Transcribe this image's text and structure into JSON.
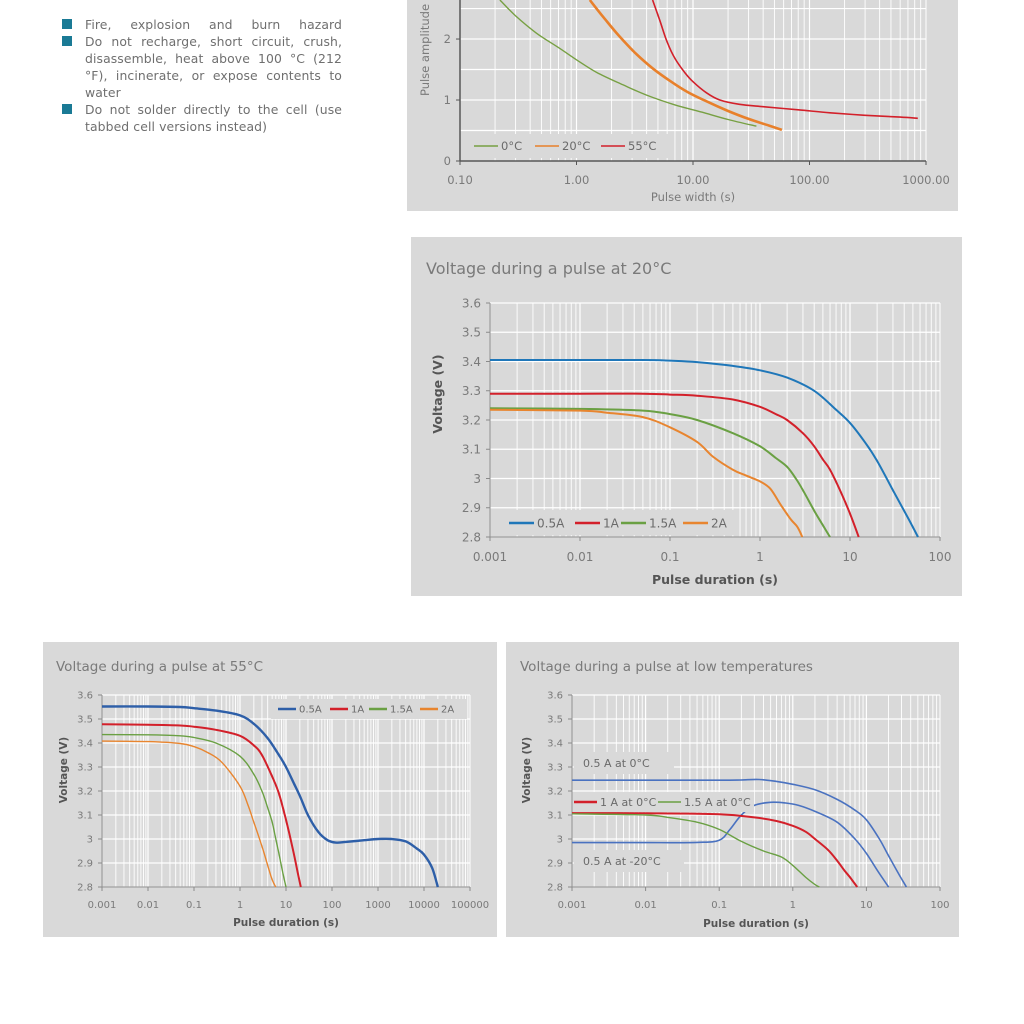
{
  "warnings": {
    "items": [
      "Fire, explosion and burn hazard",
      "Do not recharge, short circuit, crush, disassemble, heat above 100 °C (212 °F), incinerate, or expose contents to water",
      "Do not solder directly to the cell (use tabbed cell versions instead)"
    ],
    "bullet_color": "#1a7a95"
  },
  "chart_data": [
    {
      "id": "pulse-amplitude",
      "type": "line",
      "title": "",
      "xlabel": "Pulse width (s)",
      "ylabel": "Pulse amplitude",
      "xscale": "log",
      "xlim": [
        0.1,
        1000
      ],
      "ylim": [
        0,
        2.64
      ],
      "xticks": [
        "0.10",
        "1.00",
        "10.00",
        "100.00",
        "1000.00"
      ],
      "yticks": [
        "0",
        "1",
        "2"
      ],
      "legend_position": "bottom-left",
      "series": [
        {
          "name": "0°C",
          "color": "#77a043",
          "x": [
            0.22,
            0.3,
            0.45,
            0.7,
            1.0,
            1.5,
            2.5,
            4,
            7,
            12,
            20,
            35
          ],
          "y": [
            2.64,
            2.38,
            2.1,
            1.86,
            1.66,
            1.45,
            1.25,
            1.08,
            0.92,
            0.8,
            0.68,
            0.57
          ]
        },
        {
          "name": "20°C",
          "color": "#e8802b",
          "x": [
            1.3,
            1.7,
            2.3,
            3.2,
            4.5,
            6.5,
            9,
            13,
            20,
            30,
            45,
            58
          ],
          "y": [
            2.64,
            2.36,
            2.06,
            1.77,
            1.52,
            1.3,
            1.13,
            0.98,
            0.82,
            0.69,
            0.58,
            0.51
          ]
        },
        {
          "name": "55°C",
          "color": "#d3202a",
          "x": [
            4.5,
            5.2,
            6,
            7,
            8.5,
            10,
            13,
            17,
            25,
            40,
            80,
            150,
            300,
            600,
            850
          ],
          "y": [
            2.64,
            2.3,
            1.95,
            1.68,
            1.45,
            1.3,
            1.12,
            1.0,
            0.93,
            0.89,
            0.84,
            0.79,
            0.75,
            0.72,
            0.7
          ]
        }
      ]
    },
    {
      "id": "voltage-20c",
      "type": "line",
      "title": "Voltage during a pulse at 20°C",
      "xlabel": "Pulse duration (s)",
      "ylabel": "Voltage (V)",
      "xscale": "log",
      "xlim": [
        0.001,
        100
      ],
      "ylim": [
        2.8,
        3.6
      ],
      "xticks": [
        "0.001",
        "0.01",
        "0.1",
        "1",
        "10",
        "100"
      ],
      "yticks": [
        "2.8",
        "2.9",
        "3",
        "3.1",
        "3.2",
        "3.3",
        "3.4",
        "3.5",
        "3.6"
      ],
      "legend_position": "bottom-left",
      "series": [
        {
          "name": "0.5A",
          "color": "#1f77b9",
          "x": [
            0.001,
            0.01,
            0.05,
            0.1,
            0.2,
            0.5,
            1,
            2,
            4,
            7,
            10,
            15,
            20,
            30,
            45,
            57
          ],
          "y": [
            3.405,
            3.405,
            3.405,
            3.403,
            3.398,
            3.385,
            3.37,
            3.345,
            3.3,
            3.235,
            3.19,
            3.12,
            3.06,
            2.96,
            2.86,
            2.8
          ]
        },
        {
          "name": "1A",
          "color": "#d3202a",
          "x": [
            0.001,
            0.01,
            0.05,
            0.1,
            0.2,
            0.5,
            1,
            1.5,
            2,
            3,
            4,
            5,
            6,
            8,
            10,
            12.5
          ],
          "y": [
            3.29,
            3.29,
            3.29,
            3.287,
            3.283,
            3.27,
            3.245,
            3.22,
            3.2,
            3.155,
            3.11,
            3.065,
            3.03,
            2.95,
            2.88,
            2.8
          ]
        },
        {
          "name": "1.5A",
          "color": "#6aa043",
          "x": [
            0.001,
            0.01,
            0.05,
            0.1,
            0.2,
            0.5,
            1,
            1.5,
            2,
            2.5,
            3,
            4,
            5,
            6
          ],
          "y": [
            3.24,
            3.238,
            3.232,
            3.22,
            3.2,
            3.155,
            3.11,
            3.07,
            3.04,
            3.0,
            2.96,
            2.89,
            2.84,
            2.8
          ]
        },
        {
          "name": "2A",
          "color": "#e8852f",
          "x": [
            0.001,
            0.01,
            0.02,
            0.05,
            0.1,
            0.2,
            0.3,
            0.5,
            0.7,
            1,
            1.3,
            1.7,
            2.2,
            2.6,
            2.95
          ],
          "y": [
            3.235,
            3.232,
            3.225,
            3.21,
            3.175,
            3.125,
            3.075,
            3.03,
            3.01,
            2.99,
            2.965,
            2.91,
            2.86,
            2.835,
            2.8
          ]
        }
      ]
    },
    {
      "id": "voltage-55c",
      "type": "line",
      "title": "Voltage during a pulse at 55°C",
      "xlabel": "Pulse duration (s)",
      "ylabel": "Voltage (V)",
      "xscale": "log",
      "xlim": [
        0.001,
        100000
      ],
      "ylim": [
        2.8,
        3.6
      ],
      "xticks": [
        "0.001",
        "0.01",
        "0.1",
        "1",
        "10",
        "100",
        "1000",
        "10000",
        "100000"
      ],
      "yticks": [
        "2.8",
        "2.9",
        "3",
        "3.1",
        "3.2",
        "3.3",
        "3.4",
        "3.5",
        "3.6"
      ],
      "legend_position": "top-right",
      "series": [
        {
          "name": "0.5A",
          "color": "#2e5fa8",
          "x": [
            0.001,
            0.01,
            0.05,
            0.1,
            0.3,
            1,
            2,
            4,
            7,
            10,
            15,
            20,
            30,
            50,
            80,
            120,
            200,
            500,
            1000,
            2000,
            4000,
            7000,
            10000,
            15000,
            20000
          ],
          "y": [
            3.552,
            3.552,
            3.55,
            3.545,
            3.535,
            3.515,
            3.48,
            3.42,
            3.35,
            3.3,
            3.23,
            3.18,
            3.1,
            3.03,
            2.995,
            2.985,
            2.988,
            2.995,
            3.0,
            3.0,
            2.99,
            2.96,
            2.935,
            2.88,
            2.8
          ]
        },
        {
          "name": "1A",
          "color": "#d3202a",
          "x": [
            0.001,
            0.01,
            0.05,
            0.1,
            0.3,
            1,
            2,
            3,
            5,
            7,
            10,
            14,
            18,
            21
          ],
          "y": [
            3.478,
            3.476,
            3.473,
            3.468,
            3.455,
            3.43,
            3.39,
            3.35,
            3.26,
            3.19,
            3.08,
            2.96,
            2.86,
            2.8
          ]
        },
        {
          "name": "1.5A",
          "color": "#6aa043",
          "x": [
            0.001,
            0.01,
            0.05,
            0.1,
            0.3,
            1,
            2,
            3,
            4,
            5,
            6,
            7,
            8.5,
            10
          ],
          "y": [
            3.435,
            3.434,
            3.43,
            3.423,
            3.4,
            3.345,
            3.27,
            3.2,
            3.13,
            3.07,
            3.0,
            2.94,
            2.86,
            2.8
          ]
        },
        {
          "name": "2A",
          "color": "#e8852f",
          "x": [
            0.001,
            0.01,
            0.05,
            0.1,
            0.2,
            0.4,
            1,
            1.5,
            2,
            3,
            4,
            5,
            6
          ],
          "y": [
            3.408,
            3.406,
            3.398,
            3.385,
            3.36,
            3.32,
            3.22,
            3.14,
            3.07,
            2.97,
            2.89,
            2.83,
            2.8
          ]
        }
      ]
    },
    {
      "id": "voltage-low-temp",
      "type": "line",
      "title": "Voltage during a pulse at low temperatures",
      "xlabel": "Pulse duration (s)",
      "ylabel": "Voltage (V)",
      "xscale": "log",
      "xlim": [
        0.001,
        100
      ],
      "ylim": [
        2.8,
        3.6
      ],
      "xticks": [
        "0.001",
        "0.01",
        "0.1",
        "1",
        "10",
        "100"
      ],
      "yticks": [
        "2.8",
        "2.9",
        "3",
        "3.1",
        "3.2",
        "3.3",
        "3.4",
        "3.5",
        "3.6"
      ],
      "legend_position": "middle-left",
      "annotations": [
        "0.5 A at 0°C",
        "0.5 A at -20°C"
      ],
      "series": [
        {
          "name": "0.5 A at 0°C",
          "color": "#4a72c0",
          "in_legend": false,
          "x": [
            0.001,
            0.01,
            0.1,
            0.2,
            0.35,
            0.6,
            1,
            2,
            4,
            7,
            10,
            15,
            20,
            28,
            35
          ],
          "y": [
            3.245,
            3.245,
            3.245,
            3.246,
            3.248,
            3.24,
            3.228,
            3.205,
            3.165,
            3.12,
            3.08,
            3.0,
            2.93,
            2.85,
            2.8
          ]
        },
        {
          "name": "0.5 A at -20°C",
          "color": "#4a72c0",
          "in_legend": false,
          "x": [
            0.001,
            0.01,
            0.05,
            0.1,
            0.14,
            0.2,
            0.3,
            0.5,
            0.8,
            1.2,
            2,
            4,
            7,
            10,
            14,
            20
          ],
          "y": [
            2.985,
            2.985,
            2.986,
            2.995,
            3.04,
            3.1,
            3.14,
            3.153,
            3.15,
            3.14,
            3.115,
            3.07,
            3.0,
            2.94,
            2.87,
            2.8
          ]
        },
        {
          "name": "1 A at 0°C",
          "color": "#d3202a",
          "x": [
            0.001,
            0.01,
            0.1,
            0.3,
            0.6,
            1,
            1.5,
            2,
            3,
            4,
            5,
            6,
            7.5
          ],
          "y": [
            3.108,
            3.107,
            3.103,
            3.09,
            3.075,
            3.055,
            3.03,
            3.0,
            2.955,
            2.91,
            2.87,
            2.84,
            2.8
          ]
        },
        {
          "name": "1.5 A at 0°C",
          "color": "#6aa043",
          "x": [
            0.001,
            0.01,
            0.02,
            0.05,
            0.1,
            0.2,
            0.4,
            0.7,
            1,
            1.5,
            2,
            2.3
          ],
          "y": [
            3.105,
            3.1,
            3.09,
            3.07,
            3.04,
            2.99,
            2.95,
            2.925,
            2.89,
            2.84,
            2.81,
            2.8
          ]
        }
      ]
    }
  ]
}
